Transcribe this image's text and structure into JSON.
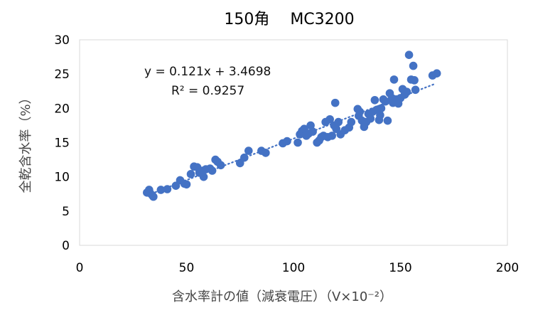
{
  "chart_data": {
    "type": "scatter",
    "title": "150角　 MC3200",
    "xlabel": "含水率計の値（減衰電圧）（V×10⁻²）",
    "ylabel": "全乾含水率（%）",
    "xlim": [
      0,
      200
    ],
    "ylim": [
      0,
      30
    ],
    "xticks": [
      0,
      50,
      100,
      150,
      200
    ],
    "yticks": [
      0,
      5,
      10,
      15,
      20,
      25,
      30
    ],
    "grid": false,
    "trendline": {
      "type": "linear",
      "slope": 0.121,
      "intercept": 3.4698,
      "style": "dotted",
      "x_range": [
        32,
        166
      ]
    },
    "annotations": {
      "equation": "y = 0.121x + 3.4698",
      "r2": "R² = 0.9257"
    },
    "colors": {
      "points": "#4472C4",
      "trendline": "#4472C4",
      "axis": "#d9d9d9"
    },
    "points": [
      [
        31.5,
        7.7
      ],
      [
        32.5,
        8.1
      ],
      [
        33.0,
        7.6
      ],
      [
        34.0,
        7.3
      ],
      [
        34.5,
        7.1
      ],
      [
        38.0,
        8.1
      ],
      [
        41.0,
        8.2
      ],
      [
        45.0,
        8.7
      ],
      [
        47.0,
        9.5
      ],
      [
        49.0,
        9.0
      ],
      [
        50.0,
        8.9
      ],
      [
        52.0,
        10.4
      ],
      [
        53.5,
        11.5
      ],
      [
        55.0,
        11.4
      ],
      [
        56.0,
        10.6
      ],
      [
        57.5,
        10.9
      ],
      [
        58.0,
        10.0
      ],
      [
        59.0,
        11.1
      ],
      [
        61.0,
        11.2
      ],
      [
        62.0,
        10.9
      ],
      [
        63.5,
        12.5
      ],
      [
        64.5,
        12.2
      ],
      [
        66.0,
        11.7
      ],
      [
        75.0,
        12.0
      ],
      [
        77.0,
        12.8
      ],
      [
        79.0,
        13.8
      ],
      [
        85.0,
        13.8
      ],
      [
        87.0,
        13.5
      ],
      [
        95.0,
        14.9
      ],
      [
        97.0,
        15.2
      ],
      [
        102.0,
        15.0
      ],
      [
        103.0,
        16.2
      ],
      [
        104.0,
        16.7
      ],
      [
        105.0,
        17.0
      ],
      [
        106.0,
        16.0
      ],
      [
        107.0,
        16.3
      ],
      [
        108.0,
        17.5
      ],
      [
        109.0,
        16.6
      ],
      [
        111.0,
        15.0
      ],
      [
        112.0,
        15.3
      ],
      [
        113.0,
        15.8
      ],
      [
        114.0,
        16.0
      ],
      [
        115.0,
        18.0
      ],
      [
        116.0,
        15.8
      ],
      [
        117.0,
        18.4
      ],
      [
        118.0,
        16.0
      ],
      [
        119.0,
        17.5
      ],
      [
        119.5,
        20.8
      ],
      [
        120.0,
        17.0
      ],
      [
        121.0,
        18.0
      ],
      [
        122.0,
        16.2
      ],
      [
        124.0,
        16.8
      ],
      [
        126.0,
        17.2
      ],
      [
        127.0,
        18.0
      ],
      [
        130.0,
        19.9
      ],
      [
        130.5,
        18.9
      ],
      [
        131.0,
        19.5
      ],
      [
        132.0,
        18.2
      ],
      [
        133.0,
        17.3
      ],
      [
        134.0,
        18.0
      ],
      [
        135.0,
        19.2
      ],
      [
        136.0,
        18.5
      ],
      [
        137.0,
        19.5
      ],
      [
        138.0,
        21.2
      ],
      [
        139.0,
        19.8
      ],
      [
        140.0,
        18.3
      ],
      [
        140.5,
        19.0
      ],
      [
        141.0,
        20.0
      ],
      [
        142.0,
        21.3
      ],
      [
        143.0,
        21.0
      ],
      [
        144.0,
        18.2
      ],
      [
        145.0,
        22.2
      ],
      [
        146.0,
        21.5
      ],
      [
        146.5,
        20.8
      ],
      [
        147.0,
        24.2
      ],
      [
        148.0,
        21.3
      ],
      [
        149.0,
        20.7
      ],
      [
        150.0,
        21.5
      ],
      [
        151.0,
        22.8
      ],
      [
        152.0,
        22.0
      ],
      [
        153.0,
        22.4
      ],
      [
        154.0,
        27.8
      ],
      [
        155.0,
        24.2
      ],
      [
        156.0,
        26.2
      ],
      [
        156.5,
        24.1
      ],
      [
        157.0,
        22.7
      ],
      [
        165.0,
        24.8
      ],
      [
        167.0,
        25.1
      ]
    ]
  }
}
